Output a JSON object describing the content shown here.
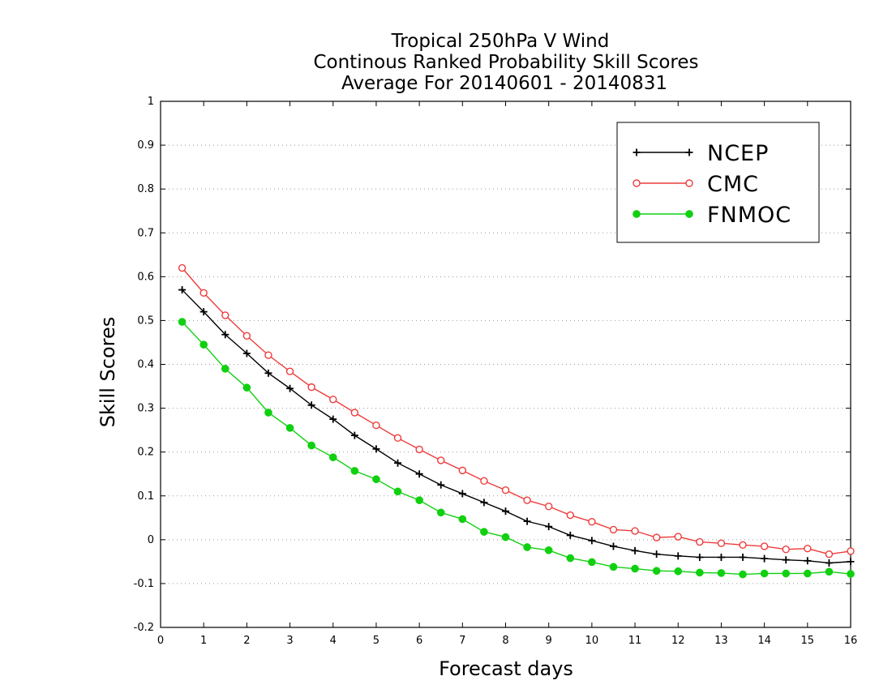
{
  "chart_data": {
    "type": "line",
    "title_lines": [
      "Tropical 250hPa V Wind",
      "Continous Ranked Probability Skill Scores",
      "Average For 20140601 - 20140831"
    ],
    "xlabel": "Forecast days",
    "ylabel": "Skill Scores",
    "xlim": [
      0,
      16
    ],
    "ylim": [
      -0.2,
      1
    ],
    "xticks": [
      "0",
      "1",
      "2",
      "3",
      "4",
      "5",
      "6",
      "7",
      "8",
      "9",
      "10",
      "11",
      "12",
      "13",
      "14",
      "15",
      "16"
    ],
    "yticks": [
      "-0.2",
      "-0.1",
      "0",
      "0.1",
      "0.2",
      "0.3",
      "0.4",
      "0.5",
      "0.6",
      "0.7",
      "0.8",
      "0.9",
      "1"
    ],
    "grid": "horizontal-dotted",
    "legend_position": "top-right",
    "x": [
      0.5,
      1,
      1.5,
      2,
      2.5,
      3,
      3.5,
      4,
      4.5,
      5,
      5.5,
      6,
      6.5,
      7,
      7.5,
      8,
      8.5,
      9,
      9.5,
      10,
      10.5,
      11,
      11.5,
      12,
      12.5,
      13,
      13.5,
      14,
      14.5,
      15,
      15.5,
      16
    ],
    "series": [
      {
        "name": "NCEP",
        "color": "#000000",
        "marker": "plus",
        "values": [
          0.57,
          0.52,
          0.468,
          0.425,
          0.38,
          0.345,
          0.307,
          0.275,
          0.238,
          0.207,
          0.175,
          0.15,
          0.125,
          0.105,
          0.085,
          0.065,
          0.042,
          0.03,
          0.01,
          -0.002,
          -0.015,
          -0.025,
          -0.033,
          -0.037,
          -0.04,
          -0.04,
          -0.04,
          -0.043,
          -0.046,
          -0.048,
          -0.053,
          -0.05
        ]
      },
      {
        "name": "CMC",
        "color": "#ee3b3b",
        "marker": "open-circle",
        "values": [
          0.62,
          0.563,
          0.512,
          0.465,
          0.421,
          0.384,
          0.348,
          0.32,
          0.29,
          0.261,
          0.232,
          0.206,
          0.181,
          0.158,
          0.134,
          0.113,
          0.09,
          0.076,
          0.056,
          0.041,
          0.023,
          0.02,
          0.005,
          0.007,
          -0.005,
          -0.008,
          -0.012,
          -0.015,
          -0.022,
          -0.02,
          -0.033,
          -0.026
        ]
      },
      {
        "name": "FNMOC",
        "color": "#10d010",
        "marker": "filled-circle",
        "values": [
          0.497,
          0.445,
          0.39,
          0.347,
          0.29,
          0.255,
          0.215,
          0.188,
          0.157,
          0.138,
          0.11,
          0.09,
          0.062,
          0.047,
          0.018,
          0.006,
          -0.017,
          -0.024,
          -0.042,
          -0.051,
          -0.062,
          -0.066,
          -0.071,
          -0.072,
          -0.075,
          -0.076,
          -0.079,
          -0.077,
          -0.077,
          -0.077,
          -0.073,
          -0.078
        ]
      }
    ]
  }
}
